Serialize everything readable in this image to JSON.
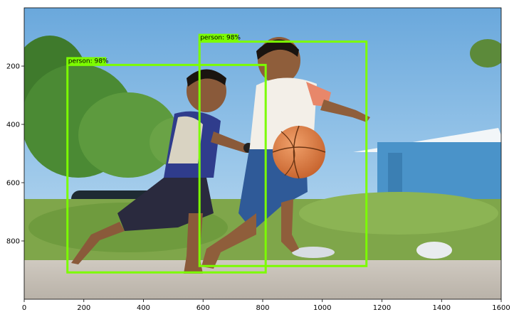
{
  "figure": {
    "image_width": 1600,
    "image_height": 1000,
    "x_ticks": [
      "0",
      "200",
      "400",
      "600",
      "800",
      "1000",
      "1200",
      "1400",
      "1600"
    ],
    "y_ticks": [
      "200",
      "400",
      "600",
      "800"
    ]
  },
  "colors": {
    "box": "#7CFC00",
    "label_bg": "#7CFC00",
    "label_text": "#000000"
  },
  "detections": [
    {
      "label": "person: 98%",
      "box": {
        "x1": 145,
        "y1": 196,
        "x2": 810,
        "y2": 908
      }
    },
    {
      "label": "person: 98%",
      "box": {
        "x1": 588,
        "y1": 116,
        "x2": 1148,
        "y2": 886
      }
    }
  ]
}
